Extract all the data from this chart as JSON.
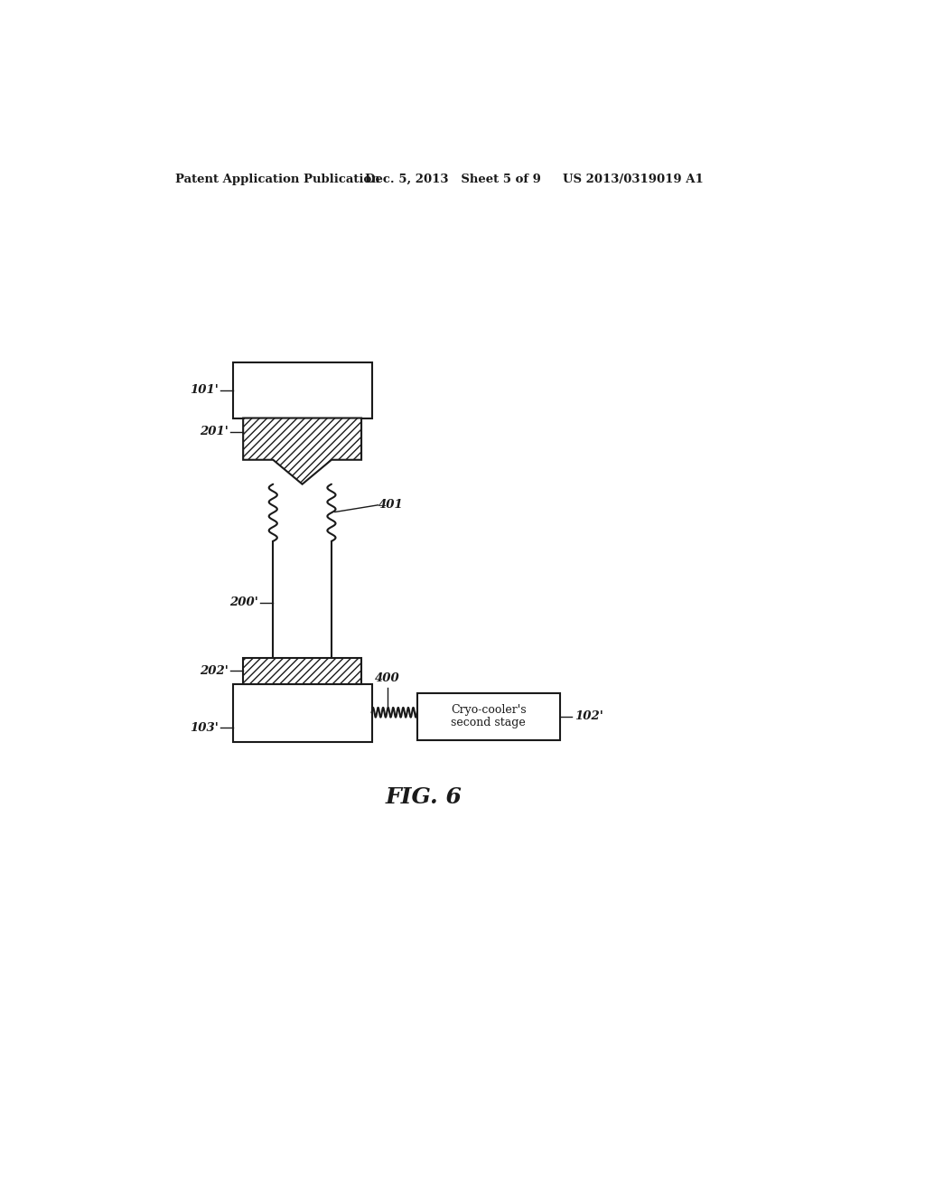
{
  "header_left": "Patent Application Publication",
  "header_mid": "Dec. 5, 2013   Sheet 5 of 9",
  "header_right": "US 2013/0319019 A1",
  "fig_label": "FIG. 6",
  "bg_color": "#ffffff",
  "line_color": "#1a1a1a",
  "label_101": "101'",
  "label_201": "201'",
  "label_200": "200'",
  "label_202": "202'",
  "label_103": "103'",
  "label_400": "400",
  "label_401": "401",
  "label_102": "102'",
  "box_102_text1": "Cryo-cooler's",
  "box_102_text2": "second stage"
}
